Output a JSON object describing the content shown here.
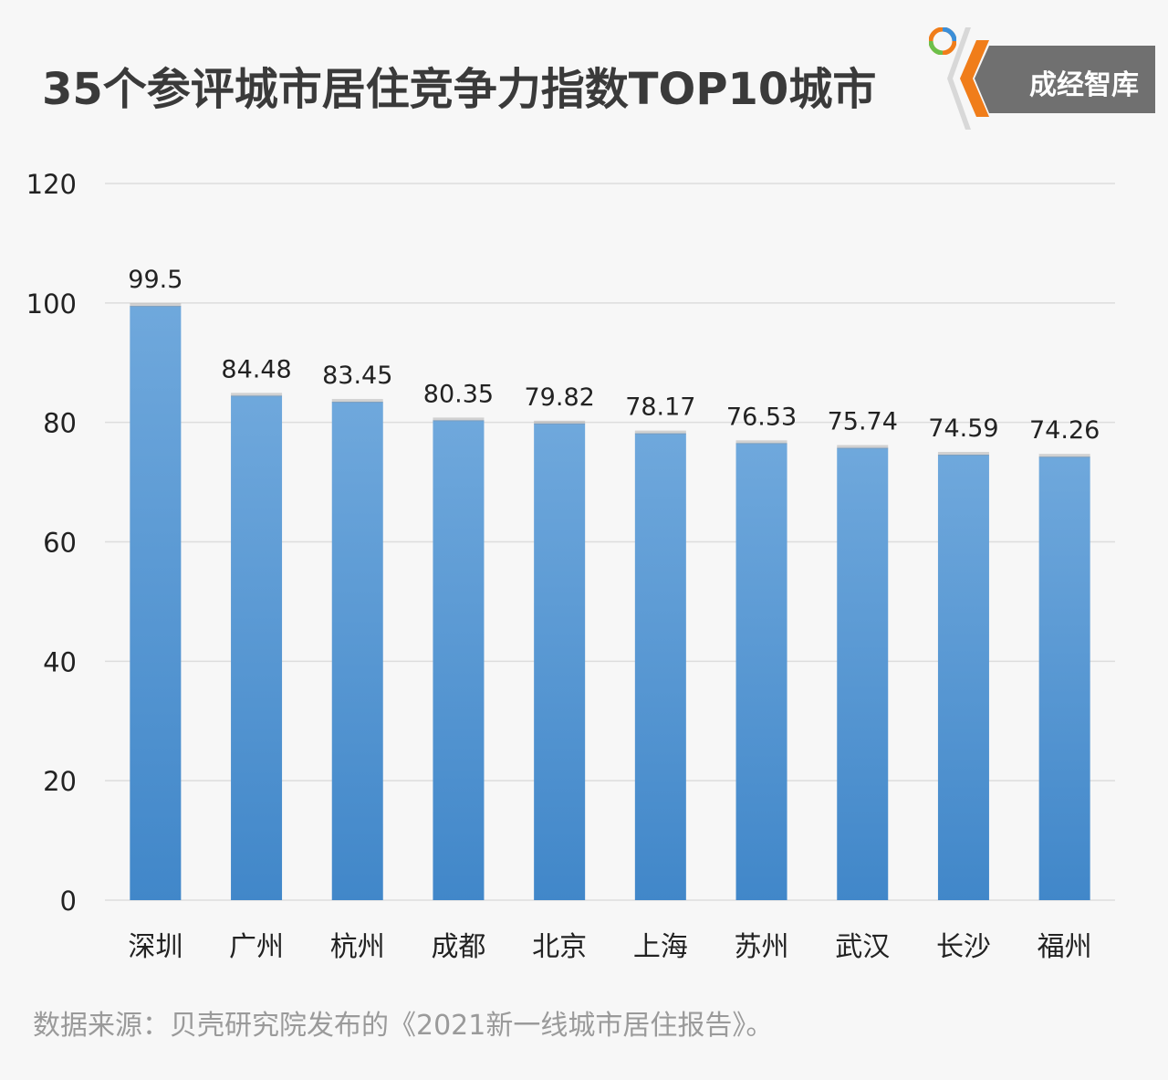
{
  "header": {
    "title": "35个参评城市居住竞争力指数TOP10城市",
    "logo_text": "成经智库"
  },
  "colors": {
    "bar_top": "#6fa8dc",
    "bar_bottom": "#4187c9",
    "grid": "#dddddd",
    "text": "#222222",
    "logo_bg": "#707070",
    "logo_accent": "#f07d1a"
  },
  "chart_data": {
    "type": "bar",
    "categories": [
      "深圳",
      "广州",
      "杭州",
      "成都",
      "北京",
      "上海",
      "苏州",
      "武汉",
      "长沙",
      "福州"
    ],
    "values": [
      99.5,
      84.48,
      83.45,
      80.35,
      79.82,
      78.17,
      76.53,
      75.74,
      74.59,
      74.26
    ],
    "value_labels": [
      "99.5",
      "84.48",
      "83.45",
      "80.35",
      "79.82",
      "78.17",
      "76.53",
      "75.74",
      "74.59",
      "74.26"
    ],
    "yticks": [
      0,
      20,
      40,
      60,
      80,
      100,
      120
    ],
    "ylim": [
      0,
      120
    ],
    "grid": true,
    "legend": "none"
  },
  "footer": {
    "source": "数据来源：贝壳研究院发布的《2021新一线城市居住报告》。"
  }
}
